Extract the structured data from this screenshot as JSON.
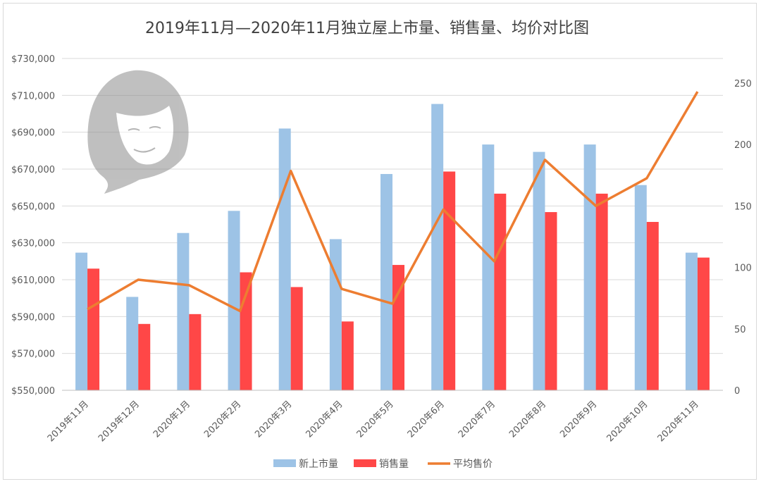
{
  "chart_data": {
    "type": "bar",
    "title": "2019年11月—2020年11月独立屋上市量、销售量、均价对比图",
    "categories": [
      "2019年11月",
      "2019年12月",
      "2020年1月",
      "2020年2月",
      "2020年3月",
      "2020年4月",
      "2020年5月",
      "2020年6月",
      "2020年7月",
      "2020年8月",
      "2020年9月",
      "2020年10月",
      "2020年11月"
    ],
    "series": [
      {
        "name": "新上市量",
        "type": "bar",
        "axis": "right",
        "color": "#9dc3e6",
        "values": [
          112,
          76,
          128,
          146,
          213,
          123,
          176,
          233,
          200,
          194,
          200,
          167,
          112
        ]
      },
      {
        "name": "销售量",
        "type": "bar",
        "axis": "right",
        "color": "#ff4747",
        "values": [
          99,
          54,
          62,
          96,
          84,
          56,
          102,
          178,
          160,
          145,
          160,
          137,
          108
        ]
      },
      {
        "name": "平均售价",
        "type": "line",
        "axis": "left",
        "color": "#ed7d31",
        "values": [
          594000,
          610000,
          607000,
          593000,
          669000,
          605000,
          597000,
          648000,
          620000,
          675000,
          650000,
          665000,
          712000
        ]
      }
    ],
    "y_left": {
      "min": 550000,
      "max": 730000,
      "step": 20000,
      "tick_labels": [
        "$550,000",
        "$570,000",
        "$590,000",
        "$610,000",
        "$630,000",
        "$650,000",
        "$670,000",
        "$690,000",
        "$710,000",
        "$730,000"
      ]
    },
    "y_right": {
      "min": 0,
      "max": 270,
      "step": 50,
      "tick_labels": [
        "0",
        "50",
        "100",
        "150",
        "200",
        "250"
      ]
    },
    "grid": true,
    "legend_position": "bottom"
  }
}
